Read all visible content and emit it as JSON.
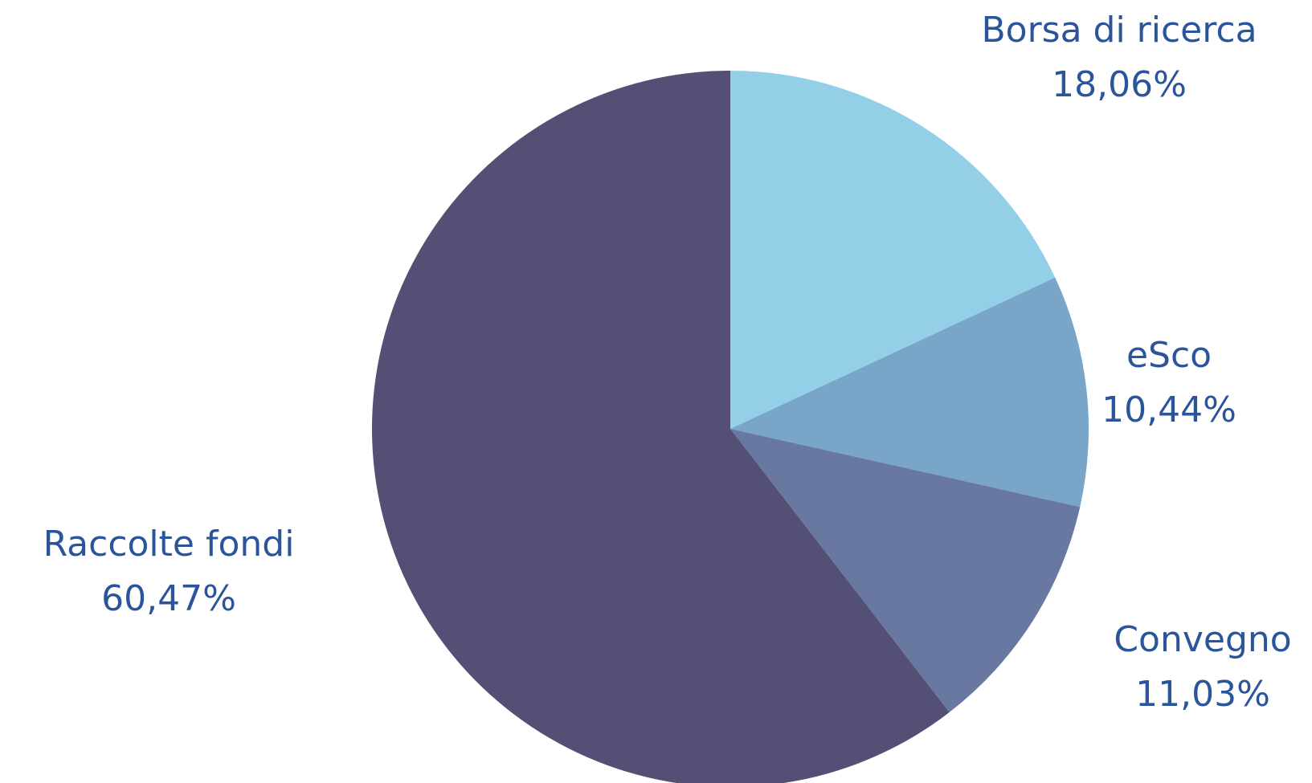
{
  "chart_data": {
    "type": "pie",
    "categories": [
      "Borsa di ricerca",
      "eSco",
      "Convegno",
      "Raccolte fondi"
    ],
    "values": [
      18.06,
      10.44,
      11.03,
      60.47
    ],
    "value_labels": [
      "18,06%",
      "10,44%",
      "11,03%",
      "60,47%"
    ],
    "colors": [
      "#93d0e8",
      "#79a5c8",
      "#6878a0",
      "#534f75"
    ]
  }
}
